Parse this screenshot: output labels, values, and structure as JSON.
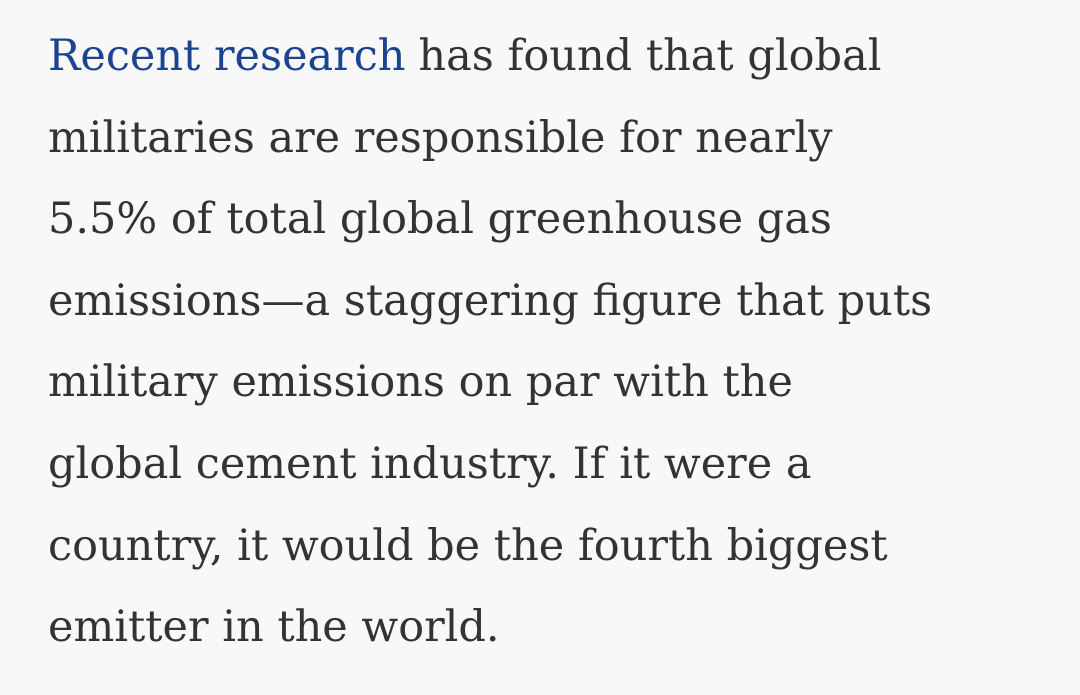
{
  "paragraph": {
    "link": "Recent research",
    "lines": [
      "has found that global",
      "militaries are responsible for nearly",
      "5.5% of total global greenhouse gas",
      "emissions—a staggering figure that puts",
      "military emissions on par with the",
      "global cement industry. If it were a",
      "country, it would be the fourth biggest",
      "emitter in the world."
    ]
  }
}
